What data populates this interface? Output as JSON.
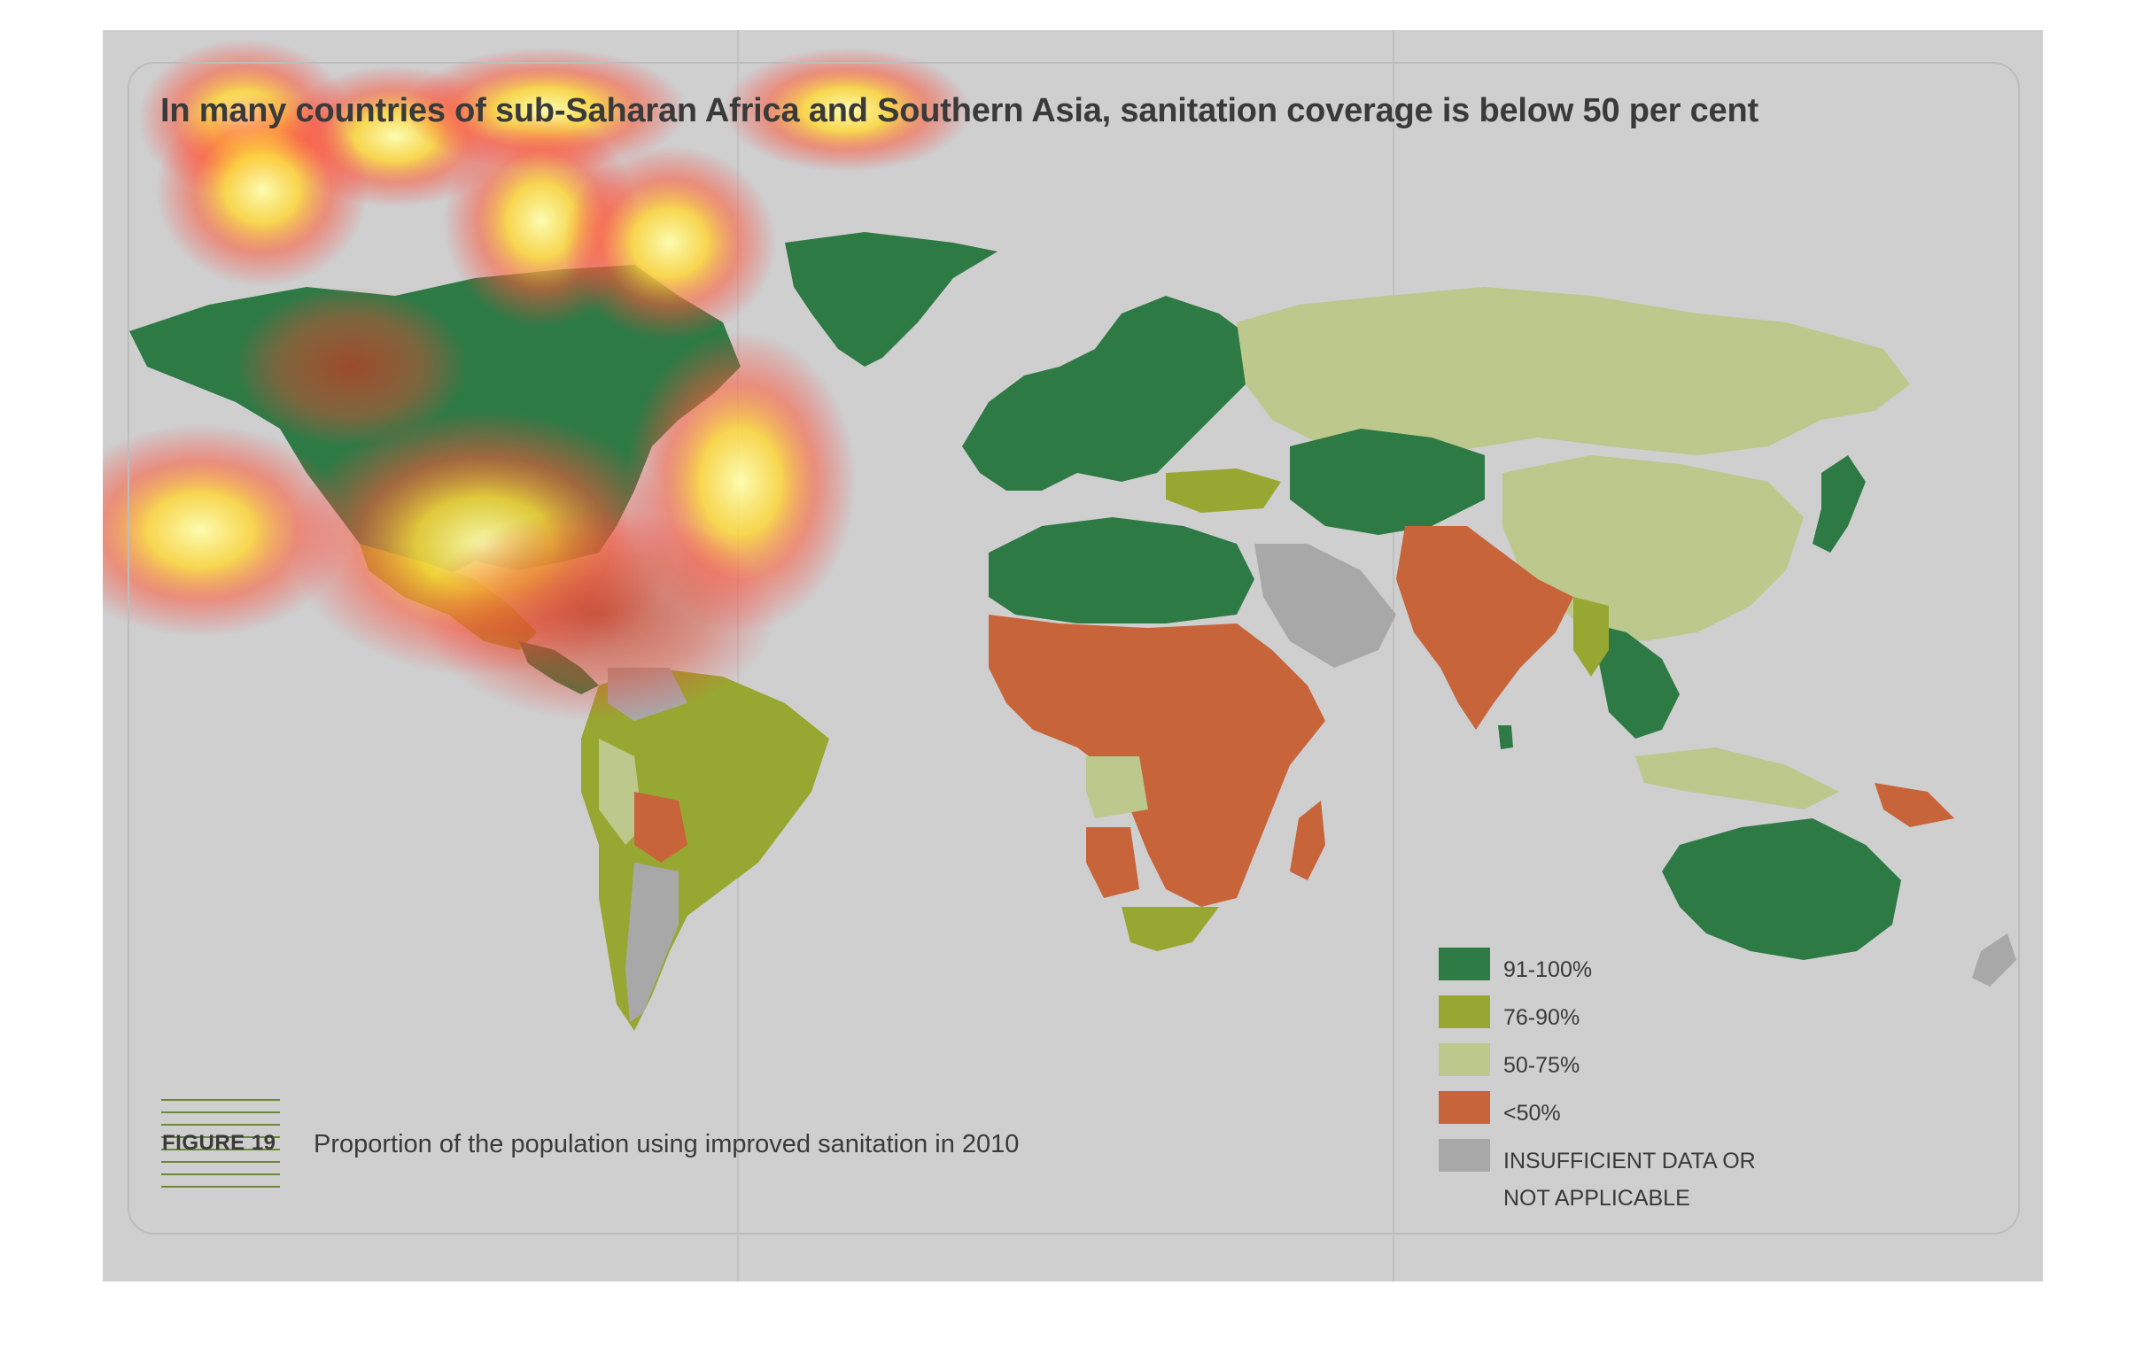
{
  "title": "In many countries of sub-Saharan Africa and Southern Asia, sanitation coverage is below 50 per cent",
  "figure": {
    "label": "FIGURE 19",
    "caption": "Proportion of the population using improved sanitation in 2010"
  },
  "legend": [
    {
      "label": "91-100%",
      "color": "#2e7a45"
    },
    {
      "label": "76-90%",
      "color": "#97a832"
    },
    {
      "label": "50-75%",
      "color": "#bcc88c"
    },
    {
      "label": "<50%",
      "color": "#c8643a"
    },
    {
      "label": "INSUFFICIENT DATA OR NOT APPLICABLE",
      "label_line1": "INSUFFICIENT DATA OR",
      "label_line2": "NOT APPLICABLE",
      "color": "#a8a8a8"
    }
  ],
  "colors": {
    "background": "#cfcfcf",
    "high": "#2e7a45",
    "midhigh": "#97a832",
    "mid": "#bcc88c",
    "low": "#c8643a",
    "nodata": "#a8a8a8"
  }
}
